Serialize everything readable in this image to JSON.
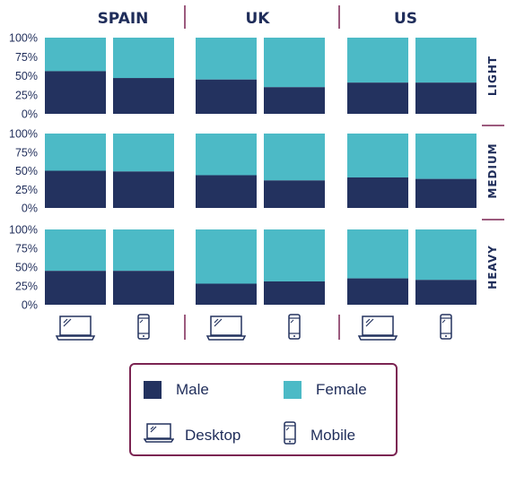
{
  "colors": {
    "male": "#23325f",
    "female": "#4cbac6",
    "divider": "#7b2452",
    "text": "#1f2d5a",
    "grid": "#d8dde6"
  },
  "legend": {
    "male": "Male",
    "female": "Female",
    "desktop": "Desktop",
    "mobile": "Mobile"
  },
  "chart_data": {
    "type": "bar",
    "stacked": true,
    "percent": true,
    "columns": [
      "SPAIN",
      "UK",
      "US"
    ],
    "rows": [
      "LIGHT",
      "MEDIUM",
      "HEAVY"
    ],
    "devices": [
      "desktop-icon",
      "mobile-icon"
    ],
    "yticks": [
      "100%",
      "75%",
      "50%",
      "25%",
      "0%"
    ],
    "ylim": [
      0,
      100
    ],
    "series": [
      {
        "name": "Male",
        "values": {
          "LIGHT": {
            "SPAIN": [
              56,
              47
            ],
            "UK": [
              45,
              35
            ],
            "US": [
              41,
              41
            ]
          },
          "MEDIUM": {
            "SPAIN": [
              50,
              49
            ],
            "UK": [
              44,
              37
            ],
            "US": [
              41,
              39
            ]
          },
          "HEAVY": {
            "SPAIN": [
              45,
              45
            ],
            "UK": [
              28,
              31
            ],
            "US": [
              35,
              33
            ]
          }
        }
      },
      {
        "name": "Female",
        "values": {
          "LIGHT": {
            "SPAIN": [
              44,
              53
            ],
            "UK": [
              55,
              65
            ],
            "US": [
              59,
              59
            ]
          },
          "MEDIUM": {
            "SPAIN": [
              50,
              51
            ],
            "UK": [
              56,
              63
            ],
            "US": [
              59,
              61
            ]
          },
          "HEAVY": {
            "SPAIN": [
              55,
              55
            ],
            "UK": [
              72,
              69
            ],
            "US": [
              65,
              67
            ]
          }
        }
      }
    ]
  }
}
